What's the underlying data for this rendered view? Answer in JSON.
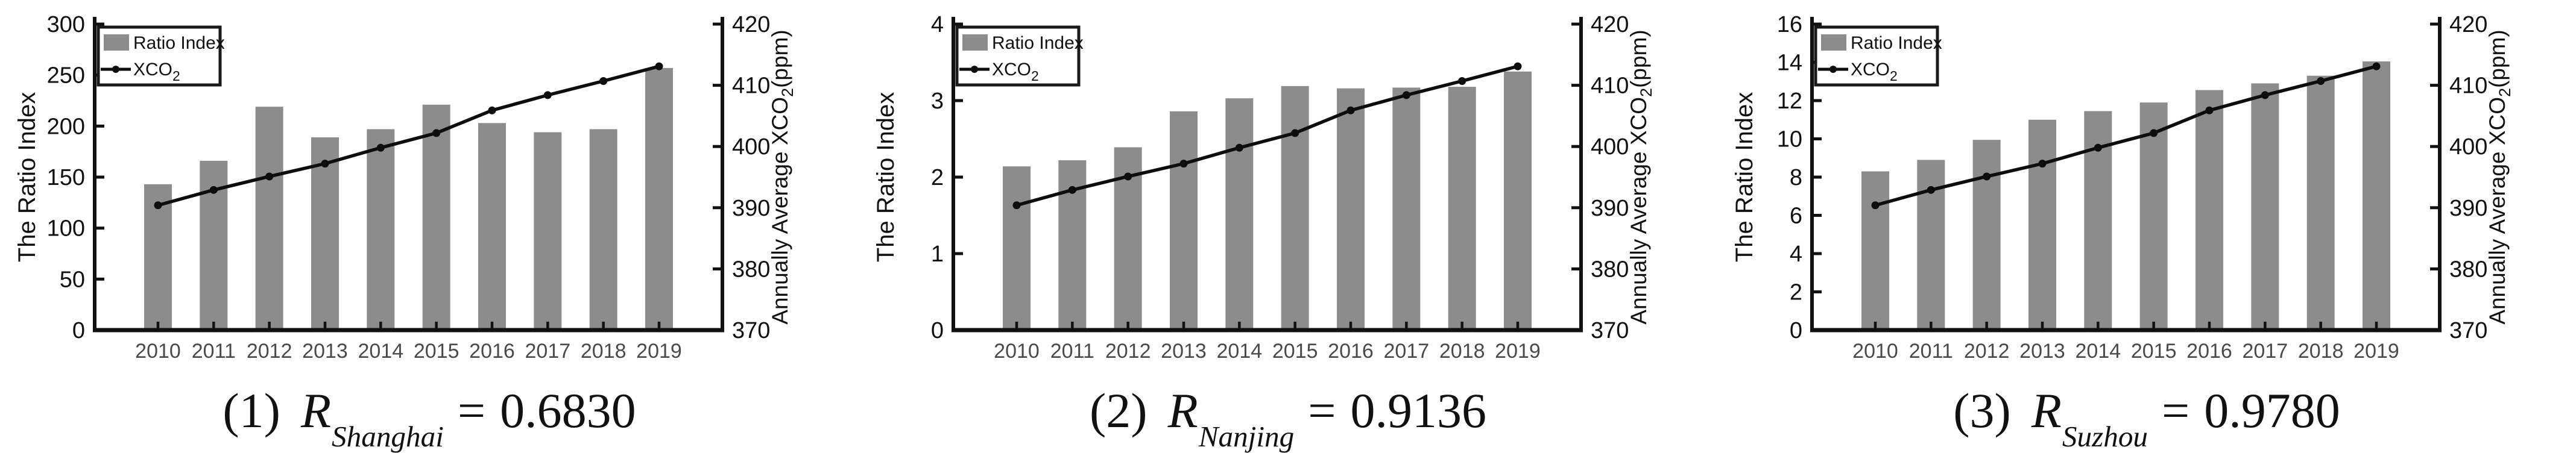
{
  "style": {
    "background": "#ffffff",
    "bar_color": "#8c8c8c",
    "line_color": "#0d0d0d",
    "axis_color": "#111111",
    "tick_label_color": "#111111",
    "year_label_color": "#4a4a4a",
    "legend_border_color": "#1a1a1a"
  },
  "legend": {
    "bar_label": "Ratio Index",
    "line_label_base": "XCO",
    "line_label_sub": "2"
  },
  "left_axis_title": "The Ratio Index",
  "right_axis_title": {
    "base": "Annually Average XCO",
    "sub": "2",
    "suffix": "(ppm)"
  },
  "chart_data": [
    {
      "type": "bar",
      "city": "Shanghai",
      "title": "",
      "categories": [
        "2010",
        "2011",
        "2012",
        "2013",
        "2014",
        "2015",
        "2016",
        "2017",
        "2018",
        "2019"
      ],
      "series": [
        {
          "name": "Ratio Index",
          "type": "bar",
          "axis": "left",
          "values": [
            143,
            166,
            219,
            189,
            197,
            221,
            203,
            194,
            197,
            257
          ]
        },
        {
          "name": "XCO2",
          "type": "line",
          "axis": "right",
          "values": [
            390.4,
            392.9,
            395.1,
            397.2,
            399.8,
            402.2,
            405.9,
            408.4,
            410.7,
            413.1
          ]
        }
      ],
      "left_axis": {
        "label": "The Ratio Index",
        "min": 0,
        "max": 300,
        "tick_step": 50
      },
      "right_axis": {
        "label": "Annually Average XCO2(ppm)",
        "min": 370,
        "max": 420,
        "tick_step": 10
      },
      "legend_labels": [
        "Ratio Index",
        "XCO2"
      ],
      "legend_position": "top-left",
      "grid": false,
      "caption": {
        "index": "(1)",
        "symbol": "R",
        "subscript": "Shanghai",
        "eq": "=",
        "value": "0.6830"
      }
    },
    {
      "type": "bar",
      "city": "Nanjing",
      "title": "",
      "categories": [
        "2010",
        "2011",
        "2012",
        "2013",
        "2014",
        "2015",
        "2016",
        "2017",
        "2018",
        "2019"
      ],
      "series": [
        {
          "name": "Ratio Index",
          "type": "bar",
          "axis": "left",
          "values": [
            2.14,
            2.22,
            2.39,
            2.86,
            3.03,
            3.19,
            3.16,
            3.17,
            3.18,
            3.38
          ]
        },
        {
          "name": "XCO2",
          "type": "line",
          "axis": "right",
          "values": [
            390.4,
            392.9,
            395.1,
            397.2,
            399.8,
            402.2,
            405.9,
            408.4,
            410.7,
            413.1
          ]
        }
      ],
      "left_axis": {
        "label": "The Ratio Index",
        "min": 0,
        "max": 4,
        "tick_step": 1
      },
      "right_axis": {
        "label": "Annually Average XCO2(ppm)",
        "min": 370,
        "max": 420,
        "tick_step": 10
      },
      "legend_labels": [
        "Ratio Index",
        "XCO2"
      ],
      "legend_position": "top-left",
      "grid": false,
      "caption": {
        "index": "(2)",
        "symbol": "R",
        "subscript": "Nanjing",
        "eq": "=",
        "value": "0.9136"
      }
    },
    {
      "type": "bar",
      "city": "Suzhou",
      "title": "",
      "categories": [
        "2010",
        "2011",
        "2012",
        "2013",
        "2014",
        "2015",
        "2016",
        "2017",
        "2018",
        "2019"
      ],
      "series": [
        {
          "name": "Ratio Index",
          "type": "bar",
          "axis": "left",
          "values": [
            8.3,
            8.9,
            9.95,
            11.0,
            11.45,
            11.9,
            12.55,
            12.9,
            13.3,
            14.05
          ]
        },
        {
          "name": "XCO2",
          "type": "line",
          "axis": "right",
          "values": [
            390.4,
            392.9,
            395.1,
            397.2,
            399.8,
            402.2,
            405.9,
            408.4,
            410.7,
            413.1
          ]
        }
      ],
      "left_axis": {
        "label": "The Ratio Index",
        "min": 0,
        "max": 16,
        "tick_step": 2
      },
      "right_axis": {
        "label": "Annually Average XCO2(ppm)",
        "min": 370,
        "max": 420,
        "tick_step": 10
      },
      "legend_labels": [
        "Ratio Index",
        "XCO2"
      ],
      "legend_position": "top-left",
      "grid": false,
      "caption": {
        "index": "(3)",
        "symbol": "R",
        "subscript": "Suzhou",
        "eq": "=",
        "value": "0.9780"
      }
    }
  ]
}
